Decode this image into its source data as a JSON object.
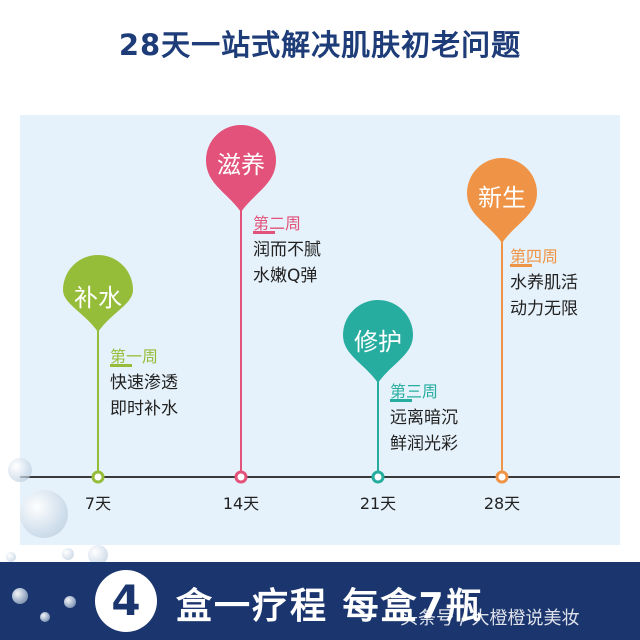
{
  "title": "28天一站式解决肌肤初老问题",
  "stages": [
    {
      "name": "补水",
      "week": "第一周",
      "lines": [
        "快速渗透",
        "即时补水"
      ],
      "day": "7天",
      "color": "#95bd3a"
    },
    {
      "name": "滋养",
      "week": "第二周",
      "lines": [
        "润而不腻",
        "水嫩Q弹"
      ],
      "day": "14天",
      "color": "#e2527a"
    },
    {
      "name": "修护",
      "week": "第三周",
      "lines": [
        "远离暗沉",
        "鲜润光彩"
      ],
      "day": "21天",
      "color": "#27ada0"
    },
    {
      "name": "新生",
      "week": "第四周",
      "lines": [
        "水养肌活",
        "动力无限"
      ],
      "day": "28天",
      "color": "#ef9446"
    }
  ],
  "footer": {
    "number": "4",
    "text": "盒一疗程 每盒7瓶",
    "watermark": "头条号 / 大橙橙说美妆"
  }
}
